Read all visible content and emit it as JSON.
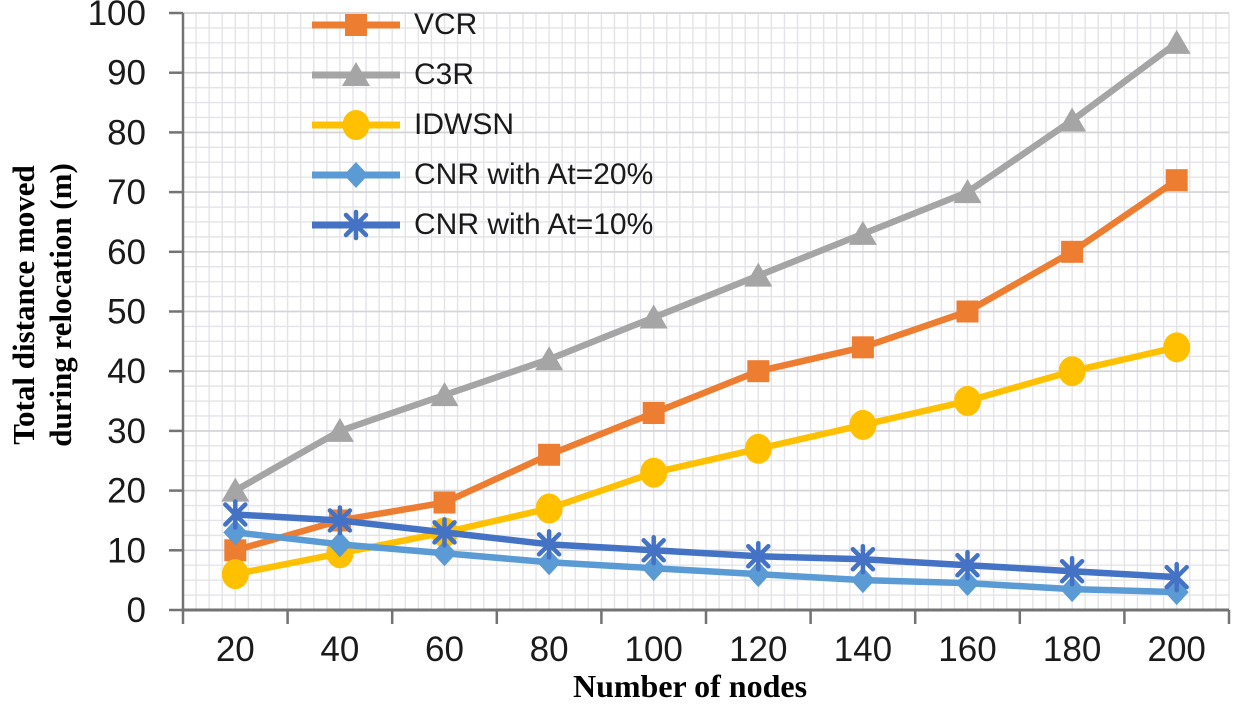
{
  "chart_data": {
    "type": "line",
    "title": "",
    "xlabel": "Number of nodes",
    "ylabel": "Total distance moved during relocation (m)",
    "ylabel_lines": [
      "Total distance moved",
      "during relocation (m)"
    ],
    "x": [
      20,
      40,
      60,
      80,
      100,
      120,
      140,
      160,
      180,
      200
    ],
    "ylim": [
      0,
      100
    ],
    "ytick_step": 10,
    "grid": "fine minor grid horizontal and vertical, light gray",
    "legend_position": "top-left inside plot",
    "axis_color": "#737373",
    "text_color": "#1a1a1a",
    "series": [
      {
        "name": "VCR",
        "color": "#ED7D31",
        "marker": "square",
        "values": [
          10,
          15,
          18,
          26,
          33,
          40,
          44,
          50,
          60,
          72
        ]
      },
      {
        "name": "C3R",
        "color": "#A5A5A5",
        "marker": "triangle",
        "values": [
          20,
          30,
          36,
          42,
          49,
          56,
          63,
          70,
          82,
          95
        ]
      },
      {
        "name": "IDWSN",
        "color": "#FFC000",
        "marker": "circle",
        "values": [
          6,
          9.5,
          13,
          17,
          23,
          27,
          31,
          35,
          40,
          44
        ]
      },
      {
        "name": "CNR with At=20%",
        "color": "#5B9BD5",
        "marker": "diamond",
        "values": [
          13,
          11,
          9.5,
          8,
          7,
          6,
          5,
          4.5,
          3.5,
          3
        ]
      },
      {
        "name": "CNR with At=10%",
        "color": "#4472C4",
        "marker": "asterisk",
        "values": [
          16,
          15,
          13,
          11,
          10,
          9,
          8.5,
          7.5,
          6.5,
          5.5
        ]
      }
    ]
  }
}
